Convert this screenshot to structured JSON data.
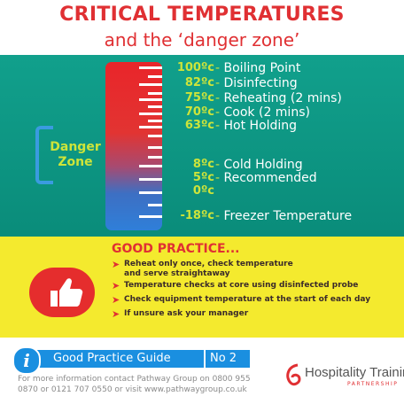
{
  "header": {
    "title": "CRITICAL TEMPERATURES",
    "subtitle": "and the ‘danger zone’"
  },
  "thermometer": {
    "danger_zone_label_line1": "Danger",
    "danger_zone_label_line2": "Zone",
    "levels": [
      {
        "temp": "100ºc",
        "label": "Boiling Point"
      },
      {
        "temp": "82ºc",
        "label": "Disinfecting"
      },
      {
        "temp": "75ºc",
        "label": "Reheating (2 mins)"
      },
      {
        "temp": "70ºc",
        "label": "Cook (2 mins)"
      },
      {
        "temp": "63ºc",
        "label": "Hot Holding"
      },
      {
        "temp": "8ºc",
        "label": "Cold Holding"
      },
      {
        "temp": "5ºc",
        "label": "Recommended"
      },
      {
        "temp": "0ºc",
        "label": ""
      },
      {
        "temp": "-18ºc",
        "label": "Freezer Temperature"
      }
    ]
  },
  "good_practice": {
    "title": "GOOD PRACTICE...",
    "items": [
      {
        "line1": "Reheat only once, check temperature",
        "line2": "and serve straightaway"
      },
      {
        "line1": "Temperature checks at core using disinfected probe",
        "line2": ""
      },
      {
        "line1": "Check equipment temperature at the start of each day",
        "line2": ""
      },
      {
        "line1": "If unsure ask your manager",
        "line2": ""
      }
    ]
  },
  "footer": {
    "guide_label": "Good Practice Guide",
    "guide_number": "No 2",
    "info_line1": "For more information contact Pathway Group on 0800 955",
    "info_line2": "0870 or  0121 707 0550 or visit www.pathwaygroup.co.uk",
    "logo_text": "Hospitality Training",
    "logo_sub": "PARTNERSHIP"
  },
  "colors": {
    "red": "#e03033",
    "green": "#0a8c7a",
    "yellow": "#f4ea2e",
    "blue": "#1a8fe0",
    "lime": "#cde43a"
  }
}
